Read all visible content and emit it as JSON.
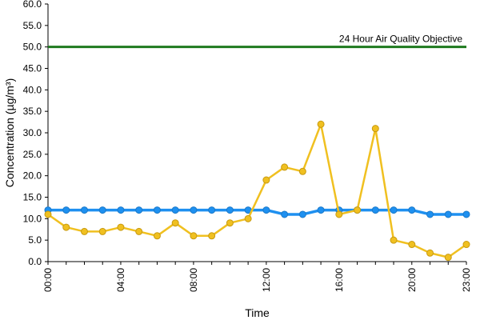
{
  "chart_data": {
    "type": "line",
    "xlabel": "Time",
    "ylabel": "Concentration (µg/m³)",
    "ylim": [
      0,
      60
    ],
    "yticks": [
      "0.0",
      "5.0",
      "10.0",
      "15.0",
      "20.0",
      "25.0",
      "30.0",
      "35.0",
      "40.0",
      "45.0",
      "50.0",
      "55.0",
      "60.0"
    ],
    "x": [
      0,
      1,
      2,
      3,
      4,
      5,
      6,
      7,
      8,
      9,
      10,
      11,
      12,
      13,
      14,
      15,
      16,
      17,
      18,
      19,
      20,
      21,
      22,
      23
    ],
    "xticks": [
      {
        "hour": 0,
        "label": "00:00"
      },
      {
        "hour": 4,
        "label": "04:00"
      },
      {
        "hour": 8,
        "label": "08:00"
      },
      {
        "hour": 12,
        "label": "12:00"
      },
      {
        "hour": 16,
        "label": "16:00"
      },
      {
        "hour": 20,
        "label": "20:00"
      },
      {
        "hour": 23,
        "label": "23:00"
      }
    ],
    "grid": false,
    "objective": {
      "value": 50,
      "label": "24 Hour Air Quality Objective",
      "color": "#1e7a1e"
    },
    "series": [
      {
        "color": "#1e90f0",
        "marker_color": "#1e90f0",
        "values": [
          12,
          12,
          12,
          12,
          12,
          12,
          12,
          12,
          12,
          12,
          12,
          12,
          12,
          11,
          11,
          12,
          12,
          12,
          12,
          12,
          12,
          11,
          11,
          11
        ]
      },
      {
        "color": "#f0c020",
        "marker_color": "#f0c020",
        "values": [
          11,
          8,
          7,
          7,
          8,
          7,
          6,
          9,
          6,
          6,
          9,
          10,
          19,
          22,
          21,
          32,
          11,
          12,
          31,
          5,
          4,
          2,
          1,
          4
        ]
      }
    ]
  }
}
